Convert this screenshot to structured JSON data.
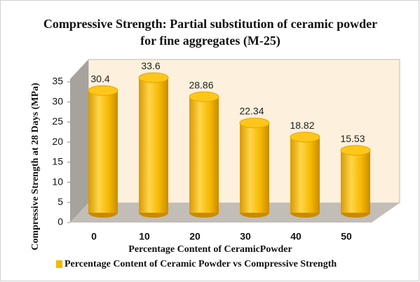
{
  "chart_data": {
    "type": "bar",
    "title": "Compressive Strength: Partial substitution of ceramic powder for fine aggregates (M-25)",
    "xlabel": "Percentage Content of CeramicPowder",
    "ylabel": "Compressive Strength at 28 Days (MPa)",
    "categories": [
      "0",
      "10",
      "20",
      "30",
      "40",
      "50"
    ],
    "series": [
      {
        "name": "Percentage Content of Ceramic Powder vs Compressive Strength",
        "color": "#f5b800",
        "values": [
          30.4,
          33.6,
          28.86,
          22.34,
          18.82,
          15.53
        ]
      }
    ],
    "ylim": [
      0,
      35
    ],
    "yticks": [
      0,
      5,
      10,
      15,
      20,
      25,
      30,
      35
    ]
  }
}
